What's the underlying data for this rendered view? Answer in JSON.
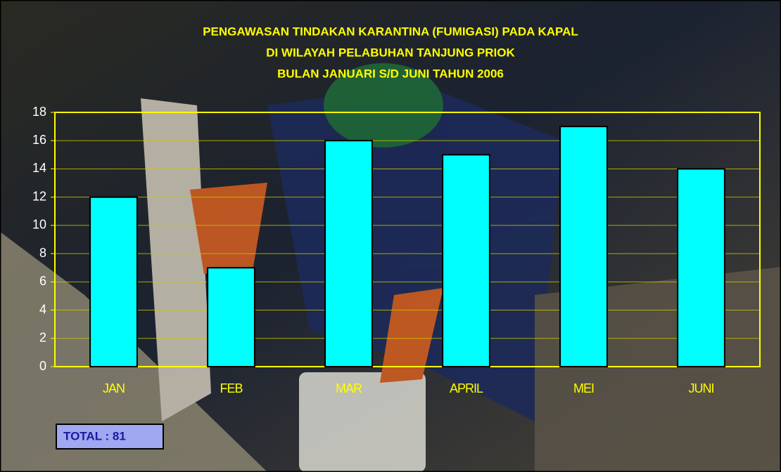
{
  "chart_data": {
    "type": "bar",
    "title_lines": [
      "PENGAWASAN TINDAKAN KARANTINA (FUMIGASI) PADA KAPAL",
      "DI  WILAYAH PELABUHAN TANJUNG PRIOK",
      "BULAN JANUARI S/D JUNI  TAHUN 2006"
    ],
    "categories": [
      "JAN",
      "FEB",
      "MAR",
      "APRIL",
      "MEI",
      "JUNI"
    ],
    "values": [
      12,
      7,
      16,
      15,
      17,
      14
    ],
    "color": "#00ffff",
    "ylim": [
      0,
      18
    ],
    "yticks": [
      0,
      2,
      4,
      6,
      8,
      10,
      12,
      14,
      16,
      18
    ],
    "grid": true,
    "annotation": "TOTAL : 81"
  }
}
